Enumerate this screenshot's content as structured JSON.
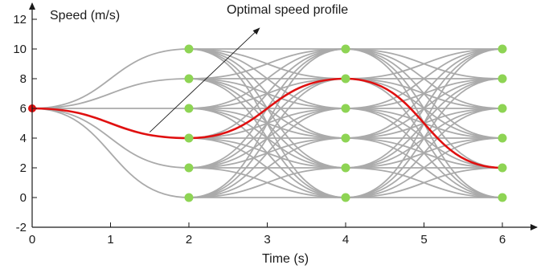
{
  "chart_data": {
    "type": "line",
    "title": "",
    "xlabel": "Time (s)",
    "ylabel": "Speed (m/s)",
    "xlim": [
      0,
      6.3
    ],
    "ylim": [
      -2,
      12.8
    ],
    "x_ticks": [
      0,
      1,
      2,
      3,
      4,
      5,
      6
    ],
    "y_ticks": [
      -2,
      0,
      2,
      4,
      6,
      8,
      10,
      12
    ],
    "x_tick_labels": [
      "0",
      "1",
      "2",
      "3",
      "4",
      "5",
      "6"
    ],
    "y_tick_labels": [
      "-2",
      "0",
      "2",
      "4",
      "6",
      "8",
      "10",
      "12"
    ],
    "grid": false,
    "start_point": {
      "t": 0,
      "v": 6
    },
    "layer_times": [
      2,
      4,
      6
    ],
    "layer_speeds": [
      0,
      2,
      4,
      6,
      8,
      10
    ],
    "candidate_curves_description_colors": {
      "candidates": "#aaaaaa",
      "optimal": "#e01010",
      "nodes": "#8ed454",
      "start": "#e01010"
    },
    "optimal_profile": {
      "name": "Optimal speed profile",
      "points": [
        {
          "t": 0,
          "v": 6
        },
        {
          "t": 2,
          "v": 4
        },
        {
          "t": 4,
          "v": 8
        },
        {
          "t": 6,
          "v": 2
        }
      ]
    },
    "annotation": {
      "text": "Optimal speed profile",
      "arrow_from": {
        "t": 1.5,
        "v": 4.4
      },
      "arrow_to": {
        "t": 2.9,
        "v": 11.4
      }
    }
  }
}
